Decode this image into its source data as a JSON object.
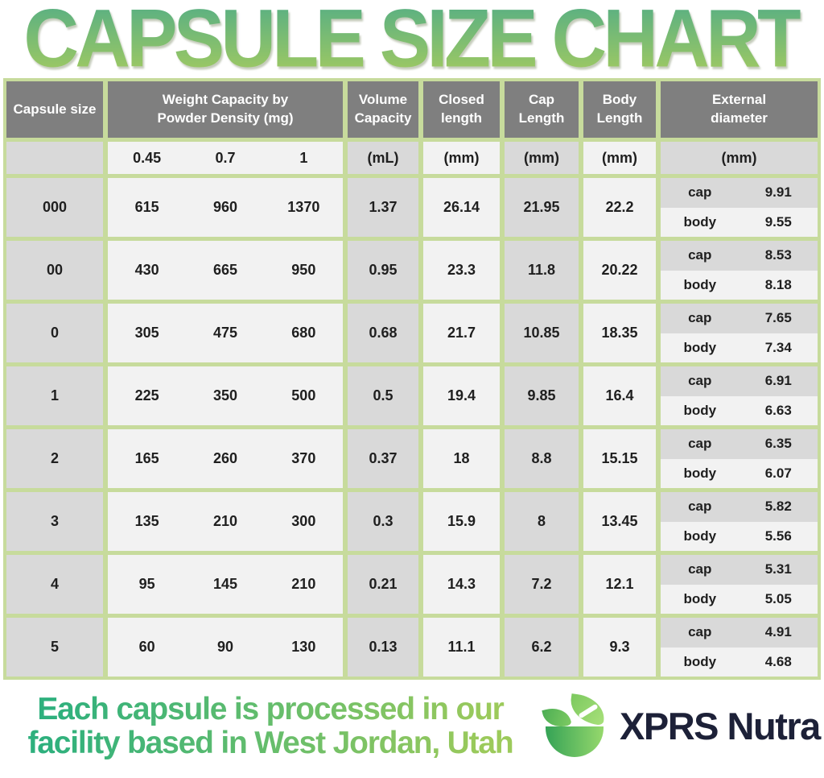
{
  "title": "CAPSULE SIZE CHART",
  "colors": {
    "border-green": "#c7db9c",
    "header-gray": "#7f7f7f",
    "cell-gray": "#d9d9d9",
    "cell-light": "#f2f2f2",
    "text-dark": "#1f1f1f",
    "title-top": "#52ad86",
    "title-bottom": "#a7cc5e",
    "foot-start": "#2eb07d",
    "foot-end": "#9cca5b",
    "brand-navy": "#1d2138"
  },
  "headers": {
    "capsule_size": "Capsule size",
    "weight_lines": [
      "Weight Capacity by",
      "Powder Density (mg)"
    ],
    "volume_lines": [
      "Volume",
      "Capacity"
    ],
    "closed_lines": [
      "Closed",
      "length"
    ],
    "cap_lines": [
      "Cap",
      "Length"
    ],
    "body_lines": [
      "Body",
      "Length"
    ],
    "external_lines": [
      "External",
      "diameter"
    ]
  },
  "subheaders": {
    "densities": [
      "0.45",
      "0.7",
      "1"
    ],
    "volume_unit": "(mL)",
    "closed_unit": "(mm)",
    "cap_unit": "(mm)",
    "body_unit": "(mm)",
    "external_unit": "(mm)"
  },
  "labels": {
    "ext_cap": "cap",
    "ext_body": "body"
  },
  "chart_data": {
    "type": "table",
    "title": "CAPSULE SIZE CHART",
    "columns": [
      "Capsule size",
      "Weight Capacity 0.45 (mg)",
      "Weight Capacity 0.7 (mg)",
      "Weight Capacity 1 (mg)",
      "Volume Capacity (mL)",
      "Closed length (mm)",
      "Cap Length (mm)",
      "Body Length (mm)",
      "External diameter cap (mm)",
      "External diameter body (mm)"
    ],
    "rows": [
      {
        "size": "000",
        "w045": "615",
        "w07": "960",
        "w1": "1370",
        "volume": "1.37",
        "closed": "26.14",
        "cap_length": "21.95",
        "body_length": "22.2",
        "ext_cap": "9.91",
        "ext_body": "9.55"
      },
      {
        "size": "00",
        "w045": "430",
        "w07": "665",
        "w1": "950",
        "volume": "0.95",
        "closed": "23.3",
        "cap_length": "11.8",
        "body_length": "20.22",
        "ext_cap": "8.53",
        "ext_body": "8.18"
      },
      {
        "size": "0",
        "w045": "305",
        "w07": "475",
        "w1": "680",
        "volume": "0.68",
        "closed": "21.7",
        "cap_length": "10.85",
        "body_length": "18.35",
        "ext_cap": "7.65",
        "ext_body": "7.34"
      },
      {
        "size": "1",
        "w045": "225",
        "w07": "350",
        "w1": "500",
        "volume": "0.5",
        "closed": "19.4",
        "cap_length": "9.85",
        "body_length": "16.4",
        "ext_cap": "6.91",
        "ext_body": "6.63"
      },
      {
        "size": "2",
        "w045": "165",
        "w07": "260",
        "w1": "370",
        "volume": "0.37",
        "closed": "18",
        "cap_length": "8.8",
        "body_length": "15.15",
        "ext_cap": "6.35",
        "ext_body": "6.07"
      },
      {
        "size": "3",
        "w045": "135",
        "w07": "210",
        "w1": "300",
        "volume": "0.3",
        "closed": "15.9",
        "cap_length": "8",
        "body_length": "13.45",
        "ext_cap": "5.82",
        "ext_body": "5.56"
      },
      {
        "size": "4",
        "w045": "95",
        "w07": "145",
        "w1": "210",
        "volume": "0.21",
        "closed": "14.3",
        "cap_length": "7.2",
        "body_length": "12.1",
        "ext_cap": "5.31",
        "ext_body": "5.05"
      },
      {
        "size": "5",
        "w045": "60",
        "w07": "90",
        "w1": "130",
        "volume": "0.13",
        "closed": "11.1",
        "cap_length": "6.2",
        "body_length": "9.3",
        "ext_cap": "4.91",
        "ext_body": "4.68"
      }
    ]
  },
  "footer": {
    "line1": "Each capsule is processed in our",
    "line2": "facility based in West Jordan, Utah",
    "brand": "XPRS Nutra"
  }
}
